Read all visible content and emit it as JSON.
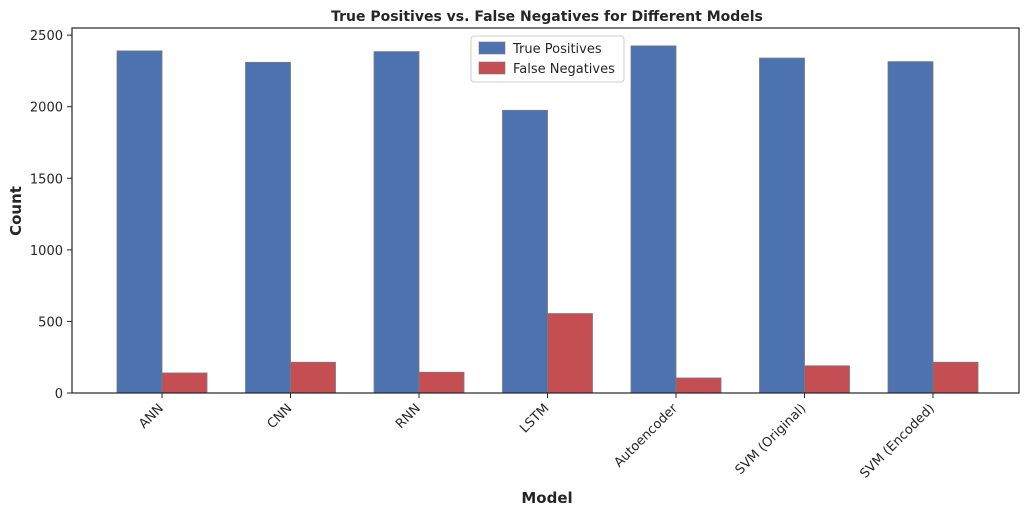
{
  "chart_data": {
    "type": "bar",
    "title": "True Positives vs. False Negatives for Different Models",
    "xlabel": "Model",
    "ylabel": "Count",
    "ylim": [
      0,
      2550
    ],
    "yticks": [
      0,
      500,
      1000,
      1500,
      2000,
      2500
    ],
    "categories": [
      "ANN",
      "CNN",
      "RNN",
      "LSTM",
      "Autoencoder",
      "SVM (Original)",
      "SVM (Encoded)"
    ],
    "series": [
      {
        "name": "True Positives",
        "color": "#4c72b0",
        "values": [
          2390,
          2310,
          2385,
          1975,
          2425,
          2340,
          2315
        ]
      },
      {
        "name": "False Negatives",
        "color": "#c44e52",
        "values": [
          140,
          215,
          145,
          555,
          105,
          190,
          215
        ]
      }
    ],
    "legend_position": "upper center",
    "grid": false
  }
}
